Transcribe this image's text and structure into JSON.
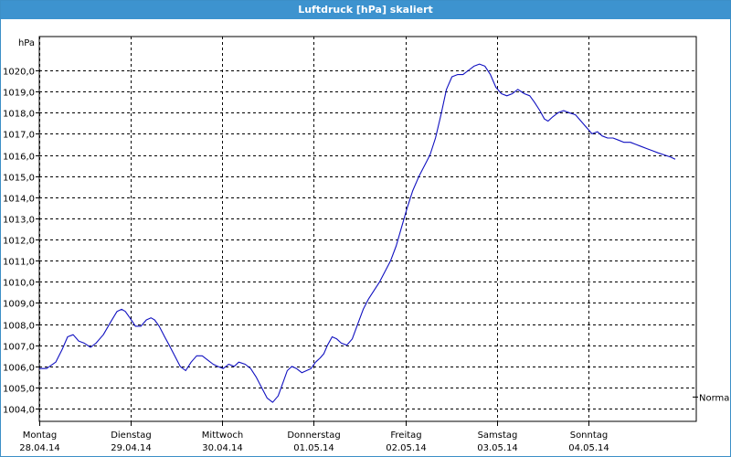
{
  "window": {
    "title": "Luftdruck [hPa] skaliert"
  },
  "chart_data": {
    "type": "line",
    "title": "Luftdruck [hPa] skaliert",
    "ylabel": "hPa",
    "ylim": [
      1003.4,
      1021.6
    ],
    "yticks": [
      1004.0,
      1005.0,
      1006.0,
      1007.0,
      1008.0,
      1009.0,
      1010.0,
      1011.0,
      1012.0,
      1013.0,
      1014.0,
      1015.0,
      1016.0,
      1017.0,
      1018.0,
      1019.0,
      1020.0
    ],
    "ytick_labels": [
      "1004,0",
      "1005,0",
      "1006,0",
      "1007,0",
      "1008,0",
      "1009,0",
      "1010,0",
      "1011,0",
      "1012,0",
      "1013,0",
      "1014,0",
      "1015,0",
      "1016,0",
      "1017,0",
      "1018,0",
      "1019,0",
      "1020,0"
    ],
    "xlim": [
      0,
      7
    ],
    "x_days": [
      {
        "day": "Montag",
        "date": "28.04.14"
      },
      {
        "day": "Dienstag",
        "date": "29.04.14"
      },
      {
        "day": "Mittwoch",
        "date": "30.04.14"
      },
      {
        "day": "Donnerstag",
        "date": "01.05.14"
      },
      {
        "day": "Freitag",
        "date": "02.05.14"
      },
      {
        "day": "Samstag",
        "date": "03.05.14"
      },
      {
        "day": "Sonntag",
        "date": "04.05.14"
      }
    ],
    "grid": true,
    "reference_line": {
      "label": "Normal",
      "value": 1004.55
    },
    "series": [
      {
        "color": "#1010c0",
        "x": [
          0.0,
          0.08,
          0.18,
          0.25,
          0.31,
          0.37,
          0.43,
          0.49,
          0.56,
          0.62,
          0.7,
          0.78,
          0.85,
          0.9,
          0.94,
          0.99,
          1.05,
          1.11,
          1.17,
          1.22,
          1.26,
          1.31,
          1.37,
          1.42,
          1.48,
          1.54,
          1.6,
          1.66,
          1.72,
          1.78,
          1.84,
          1.9,
          1.95,
          2.01,
          2.07,
          2.13,
          2.18,
          2.25,
          2.31,
          2.37,
          2.43,
          2.49,
          2.55,
          2.61,
          2.66,
          2.71,
          2.76,
          2.81,
          2.87,
          2.92,
          2.97,
          3.02,
          3.07,
          3.11,
          3.15,
          3.2,
          3.25,
          3.3,
          3.36,
          3.42,
          3.48,
          3.54,
          3.6,
          3.66,
          3.72,
          3.78,
          3.84,
          3.9,
          3.96,
          4.02,
          4.08,
          4.15,
          4.21,
          4.27,
          4.33,
          4.39,
          4.45,
          4.51,
          4.57,
          4.63,
          4.69,
          4.75,
          4.81,
          4.87,
          4.93,
          4.99,
          5.05,
          5.11,
          5.17,
          5.23,
          5.3,
          5.36,
          5.41,
          5.47,
          5.52,
          5.56,
          5.61,
          5.67,
          5.73,
          5.79,
          5.86,
          5.92,
          5.98,
          6.04,
          6.1,
          6.15,
          6.21,
          6.27,
          6.33,
          6.39,
          6.46,
          6.52,
          6.58,
          6.64,
          6.7,
          6.76,
          6.83,
          6.9,
          6.95
        ],
        "y": [
          1005.9,
          1005.9,
          1006.2,
          1006.8,
          1007.4,
          1007.5,
          1007.2,
          1007.1,
          1006.9,
          1007.1,
          1007.5,
          1008.1,
          1008.6,
          1008.7,
          1008.6,
          1008.3,
          1007.9,
          1007.9,
          1008.2,
          1008.3,
          1008.2,
          1007.9,
          1007.4,
          1007.0,
          1006.5,
          1006.0,
          1005.8,
          1006.2,
          1006.5,
          1006.5,
          1006.3,
          1006.1,
          1006.0,
          1005.9,
          1006.1,
          1006.0,
          1006.2,
          1006.1,
          1005.9,
          1005.5,
          1005.0,
          1004.5,
          1004.3,
          1004.6,
          1005.2,
          1005.8,
          1006.0,
          1005.9,
          1005.7,
          1005.8,
          1005.9,
          1006.2,
          1006.4,
          1006.6,
          1007.0,
          1007.4,
          1007.3,
          1007.1,
          1007.0,
          1007.3,
          1008.0,
          1008.7,
          1009.2,
          1009.6,
          1010.0,
          1010.5,
          1011.0,
          1011.7,
          1012.6,
          1013.5,
          1014.3,
          1015.0,
          1015.5,
          1016.0,
          1016.8,
          1017.9,
          1019.1,
          1019.7,
          1019.8,
          1019.8,
          1020.0,
          1020.2,
          1020.3,
          1020.2,
          1019.8,
          1019.2,
          1018.9,
          1018.8,
          1018.9,
          1019.1,
          1018.9,
          1018.8,
          1018.5,
          1018.1,
          1017.7,
          1017.6,
          1017.8,
          1018.0,
          1018.1,
          1018.0,
          1017.9,
          1017.6,
          1017.3,
          1017.0,
          1017.1,
          1016.9,
          1016.8,
          1016.8,
          1016.7,
          1016.6,
          1016.6,
          1016.5,
          1016.4,
          1016.3,
          1016.2,
          1016.1,
          1016.0,
          1015.9,
          1015.8
        ]
      }
    ]
  }
}
